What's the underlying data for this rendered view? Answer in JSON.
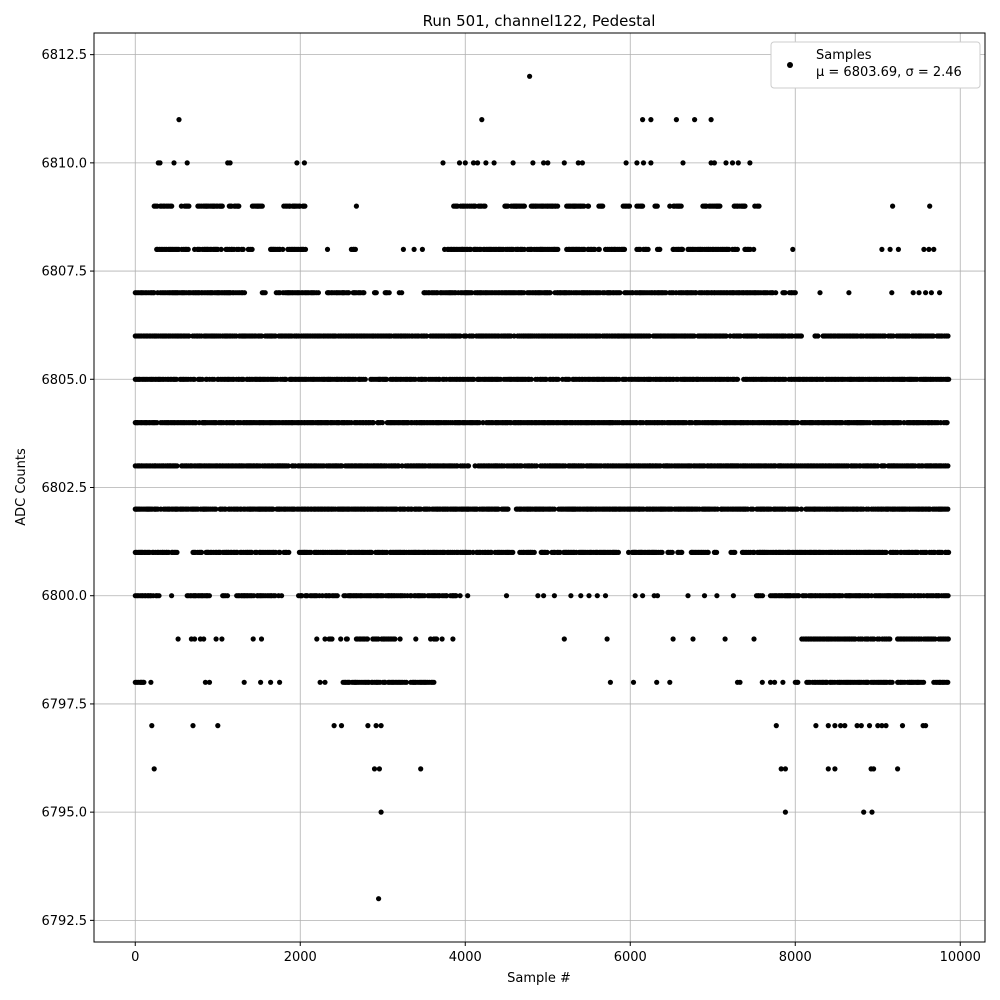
{
  "chart_data": {
    "type": "scatter",
    "title": "Run 501, channel122, Pedestal",
    "xlabel": "Sample #",
    "ylabel": "ADC Counts",
    "xlim": [
      -500,
      10300
    ],
    "ylim": [
      6792.0,
      6813.0
    ],
    "xticks": [
      0,
      2000,
      4000,
      6000,
      8000,
      10000
    ],
    "xtick_labels": [
      "0",
      "2000",
      "4000",
      "6000",
      "8000",
      "10000"
    ],
    "yticks": [
      6792.5,
      6795.0,
      6797.5,
      6800.0,
      6802.5,
      6805.0,
      6807.5,
      6810.0,
      6812.5
    ],
    "ytick_labels": [
      "6792.5",
      "6795.0",
      "6797.5",
      "6800.0",
      "6802.5",
      "6805.0",
      "6807.5",
      "6810.0",
      "6812.5"
    ],
    "grid": true,
    "legend": {
      "placement": "top-right",
      "label_line1": "Samples",
      "label_line2": "μ = 6803.69, σ = 2.46"
    },
    "series": [
      {
        "name": "Samples",
        "color": "#000000",
        "marker": "dot",
        "x_range": [
          0,
          9850
        ],
        "mean": 6803.69,
        "sigma": 2.46,
        "points": [
          [
            2950,
            6793
          ],
          [
            4780,
            6812
          ],
          [
            530,
            6811
          ],
          [
            4200,
            6811
          ],
          [
            6150,
            6811
          ],
          [
            6250,
            6811
          ],
          [
            6560,
            6811
          ],
          [
            6780,
            6811
          ],
          [
            6980,
            6811
          ],
          [
            2980,
            6795
          ],
          [
            7880,
            6795
          ],
          [
            8830,
            6795
          ],
          [
            8930,
            6795
          ],
          [
            230,
            6796
          ],
          [
            2900,
            6796
          ],
          [
            2960,
            6796
          ],
          [
            3460,
            6796
          ],
          [
            7830,
            6796
          ],
          [
            7880,
            6796
          ],
          [
            8400,
            6796
          ],
          [
            8480,
            6796
          ],
          [
            8920,
            6796
          ],
          [
            8950,
            6796
          ],
          [
            9240,
            6796
          ],
          [
            200,
            6797
          ],
          [
            700,
            6797
          ],
          [
            1000,
            6797
          ],
          [
            2410,
            6797
          ],
          [
            2500,
            6797
          ],
          [
            2820,
            6797
          ],
          [
            2920,
            6797
          ],
          [
            2980,
            6797
          ],
          [
            7770,
            6797
          ],
          [
            8250,
            6797
          ],
          [
            8400,
            6797
          ],
          [
            8480,
            6797
          ],
          [
            8550,
            6797
          ],
          [
            8600,
            6797
          ],
          [
            8750,
            6797
          ],
          [
            8800,
            6797
          ],
          [
            8900,
            6797
          ],
          [
            9000,
            6797
          ],
          [
            9050,
            6797
          ],
          [
            9100,
            6797
          ],
          [
            9300,
            6797
          ],
          [
            9550,
            6797
          ],
          [
            9580,
            6797
          ],
          [
            280,
            6810
          ],
          [
            300,
            6810
          ],
          [
            470,
            6810
          ],
          [
            630,
            6810
          ],
          [
            1120,
            6810
          ],
          [
            1150,
            6810
          ],
          [
            1960,
            6810
          ],
          [
            2050,
            6810
          ],
          [
            3730,
            6810
          ],
          [
            3930,
            6810
          ],
          [
            4000,
            6810
          ],
          [
            4100,
            6810
          ],
          [
            4150,
            6810
          ],
          [
            4250,
            6810
          ],
          [
            4350,
            6810
          ],
          [
            4580,
            6810
          ],
          [
            4820,
            6810
          ],
          [
            4950,
            6810
          ],
          [
            5000,
            6810
          ],
          [
            5200,
            6810
          ],
          [
            5370,
            6810
          ],
          [
            5420,
            6810
          ],
          [
            5950,
            6810
          ],
          [
            6080,
            6810
          ],
          [
            6160,
            6810
          ],
          [
            6250,
            6810
          ],
          [
            6640,
            6810
          ],
          [
            6980,
            6810
          ],
          [
            7020,
            6810
          ],
          [
            7160,
            6810
          ],
          [
            7240,
            6810
          ],
          [
            7310,
            6810
          ],
          [
            7450,
            6810
          ],
          [
            9180,
            6809
          ],
          [
            9630,
            6809
          ],
          [
            2680,
            6809
          ],
          [
            7970,
            6808
          ],
          [
            9050,
            6808
          ],
          [
            9150,
            6808
          ],
          [
            9250,
            6808
          ],
          [
            9560,
            6808
          ],
          [
            9620,
            6808
          ],
          [
            9680,
            6808
          ],
          [
            3250,
            6808
          ],
          [
            3380,
            6808
          ],
          [
            3480,
            6808
          ],
          [
            2330,
            6808
          ],
          [
            8000,
            6807.0
          ],
          [
            8300,
            6807.0
          ],
          [
            8650,
            6807.0
          ],
          [
            9170,
            6807.0
          ],
          [
            9430,
            6807.0
          ],
          [
            9500,
            6807.0
          ],
          [
            9580,
            6807.0
          ],
          [
            9650,
            6807.0
          ],
          [
            9750,
            6807.0
          ],
          [
            520,
            6799
          ],
          [
            680,
            6799
          ],
          [
            720,
            6799
          ],
          [
            790,
            6799
          ],
          [
            830,
            6799
          ],
          [
            980,
            6799
          ],
          [
            1050,
            6799
          ],
          [
            1430,
            6799
          ],
          [
            1530,
            6799
          ],
          [
            2200,
            6799
          ],
          [
            2300,
            6799
          ],
          [
            2490,
            6799
          ],
          [
            3210,
            6799
          ],
          [
            3400,
            6799
          ],
          [
            3580,
            6799
          ],
          [
            3720,
            6799
          ],
          [
            3850,
            6799
          ],
          [
            5200,
            6799
          ],
          [
            5720,
            6799
          ],
          [
            6520,
            6799
          ],
          [
            6760,
            6799
          ],
          [
            7150,
            6799
          ],
          [
            7500,
            6799
          ],
          [
            70,
            6798
          ],
          [
            190,
            6798
          ],
          [
            850,
            6798
          ],
          [
            900,
            6798
          ],
          [
            1320,
            6798
          ],
          [
            1520,
            6798
          ],
          [
            1640,
            6798
          ],
          [
            1750,
            6798
          ],
          [
            2240,
            6798
          ],
          [
            2300,
            6798
          ],
          [
            5760,
            6798
          ],
          [
            6040,
            6798
          ],
          [
            6320,
            6798
          ],
          [
            6480,
            6798
          ],
          [
            7300,
            6798
          ],
          [
            7330,
            6798
          ],
          [
            7600,
            6798
          ],
          [
            7700,
            6798
          ],
          [
            7750,
            6798
          ],
          [
            7850,
            6798
          ],
          [
            8000,
            6798
          ],
          [
            440,
            6800
          ],
          [
            4030,
            6800
          ],
          [
            4500,
            6800
          ],
          [
            4880,
            6800
          ],
          [
            4950,
            6800
          ],
          [
            5080,
            6800
          ],
          [
            5280,
            6800
          ],
          [
            5400,
            6800
          ],
          [
            5500,
            6800
          ],
          [
            5600,
            6800
          ],
          [
            5700,
            6800
          ],
          [
            6060,
            6800
          ],
          [
            6150,
            6800
          ],
          [
            6290,
            6800
          ],
          [
            6330,
            6800
          ],
          [
            6700,
            6800
          ],
          [
            6900,
            6800
          ],
          [
            7050,
            6800
          ],
          [
            7250,
            6800
          ]
        ],
        "bands": [
          {
            "y": 6809,
            "segments": [
              [
                230,
                460
              ],
              [
                560,
                660
              ],
              [
                760,
                1060
              ],
              [
                1140,
                1260
              ],
              [
                1420,
                1560
              ],
              [
                1800,
                2070
              ],
              [
                3860,
                4250
              ],
              [
                4480,
                4730
              ],
              [
                4800,
                5120
              ],
              [
                5230,
                5500
              ],
              [
                5620,
                5680
              ],
              [
                5900,
                6020
              ],
              [
                6080,
                6150
              ],
              [
                6300,
                6330
              ],
              [
                6480,
                6620
              ],
              [
                6880,
                7100
              ],
              [
                7260,
                7400
              ],
              [
                7510,
                7570
              ]
            ]
          },
          {
            "y": 6808,
            "segments": [
              [
                260,
                660
              ],
              [
                720,
                1050
              ],
              [
                1100,
                1320
              ],
              [
                1370,
                1420
              ],
              [
                1640,
                1800
              ],
              [
                1850,
                2070
              ],
              [
                2620,
                2680
              ],
              [
                3750,
                4720
              ],
              [
                4760,
                5140
              ],
              [
                5230,
                5640
              ],
              [
                5700,
                5940
              ],
              [
                6080,
                6130
              ],
              [
                6160,
                6230
              ],
              [
                6330,
                6360
              ],
              [
                6520,
                6640
              ],
              [
                6700,
                7200
              ],
              [
                7240,
                7300
              ],
              [
                7390,
                7510
              ]
            ]
          },
          {
            "y": 6807,
            "segments": [
              [
                0,
                1330
              ],
              [
                1540,
                1580
              ],
              [
                1710,
                2230
              ],
              [
                2330,
                2590
              ],
              [
                2640,
                2790
              ],
              [
                2900,
                2930
              ],
              [
                3030,
                3080
              ],
              [
                3200,
                3230
              ],
              [
                3500,
                3670
              ],
              [
                3700,
                7770
              ],
              [
                7850,
                7880
              ],
              [
                7930,
                8000
              ]
            ]
          },
          {
            "y": 6806,
            "segments": [
              [
                0,
                8080
              ],
              [
                8240,
                9860
              ]
            ]
          },
          {
            "y": 6805,
            "segments": [
              [
                0,
                9860
              ]
            ]
          },
          {
            "y": 6804,
            "segments": [
              [
                0,
                9860
              ]
            ]
          },
          {
            "y": 6803,
            "segments": [
              [
                0,
                4050
              ],
              [
                4120,
                9860
              ]
            ]
          },
          {
            "y": 6802,
            "segments": [
              [
                0,
                4520
              ],
              [
                4620,
                9860
              ]
            ]
          },
          {
            "y": 6801,
            "segments": [
              [
                0,
                510
              ],
              [
                700,
                1880
              ],
              [
                1990,
                4580
              ],
              [
                4650,
                4850
              ],
              [
                4920,
                5000
              ],
              [
                5050,
                5870
              ],
              [
                5980,
                6640
              ],
              [
                6740,
                7060
              ],
              [
                7200,
                7290
              ],
              [
                7360,
                9860
              ]
            ]
          },
          {
            "y": 6800,
            "segments": [
              [
                0,
                300
              ],
              [
                630,
                900
              ],
              [
                1060,
                1120
              ],
              [
                1230,
                1780
              ],
              [
                1980,
                2450
              ],
              [
                2530,
                3940
              ],
              [
                7530,
                7620
              ],
              [
                7700,
                9860
              ]
            ]
          },
          {
            "y": 6799,
            "segments": [
              [
                2350,
                2400
              ],
              [
                2560,
                2590
              ],
              [
                2680,
                2830
              ],
              [
                2880,
                3150
              ],
              [
                3620,
                3660
              ],
              [
                8080,
                9150
              ],
              [
                9240,
                9860
              ]
            ]
          },
          {
            "y": 6798,
            "segments": [
              [
                0,
                110
              ],
              [
                2520,
                3300
              ],
              [
                3340,
                3640
              ],
              [
                8020,
                8060
              ],
              [
                8140,
                9180
              ],
              [
                9240,
                9560
              ],
              [
                9680,
                9860
              ]
            ]
          }
        ]
      }
    ]
  }
}
